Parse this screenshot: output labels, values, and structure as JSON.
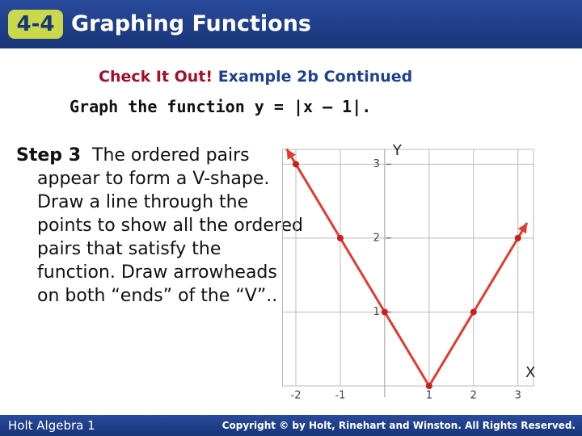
{
  "header": {
    "badge": "4-4",
    "title": "Graphing Functions"
  },
  "subtitle": {
    "lead": "Check It Out!",
    "rest": "Example 2b Continued"
  },
  "prompt": "Graph the function y = |x – 1|.",
  "step": {
    "label": "Step 3",
    "text": "The ordered pairs appear to form a V-shape. Draw a line through the points to show all the ordered pairs that satisfy the function. Draw arrowheads on both “ends” of the “V”.."
  },
  "chart_data": {
    "type": "line",
    "x_label": "X",
    "y_label": "Y",
    "x": [
      -2,
      -1,
      0,
      1,
      2,
      3
    ],
    "series": [
      {
        "color": "#e53a2e",
        "values": [
          3,
          2,
          1,
          0,
          1,
          2
        ]
      }
    ],
    "xlim": [
      -2.3,
      3.35
    ],
    "ylim": [
      0,
      3.2
    ],
    "xticks": [
      -2,
      -1,
      1,
      2,
      3
    ],
    "yticks": [
      1,
      2,
      3
    ],
    "grid": true
  },
  "footer": {
    "left": "Holt Algebra 1",
    "right": "Copyright © by Holt, Rinehart and Winston. All Rights Reserved."
  }
}
